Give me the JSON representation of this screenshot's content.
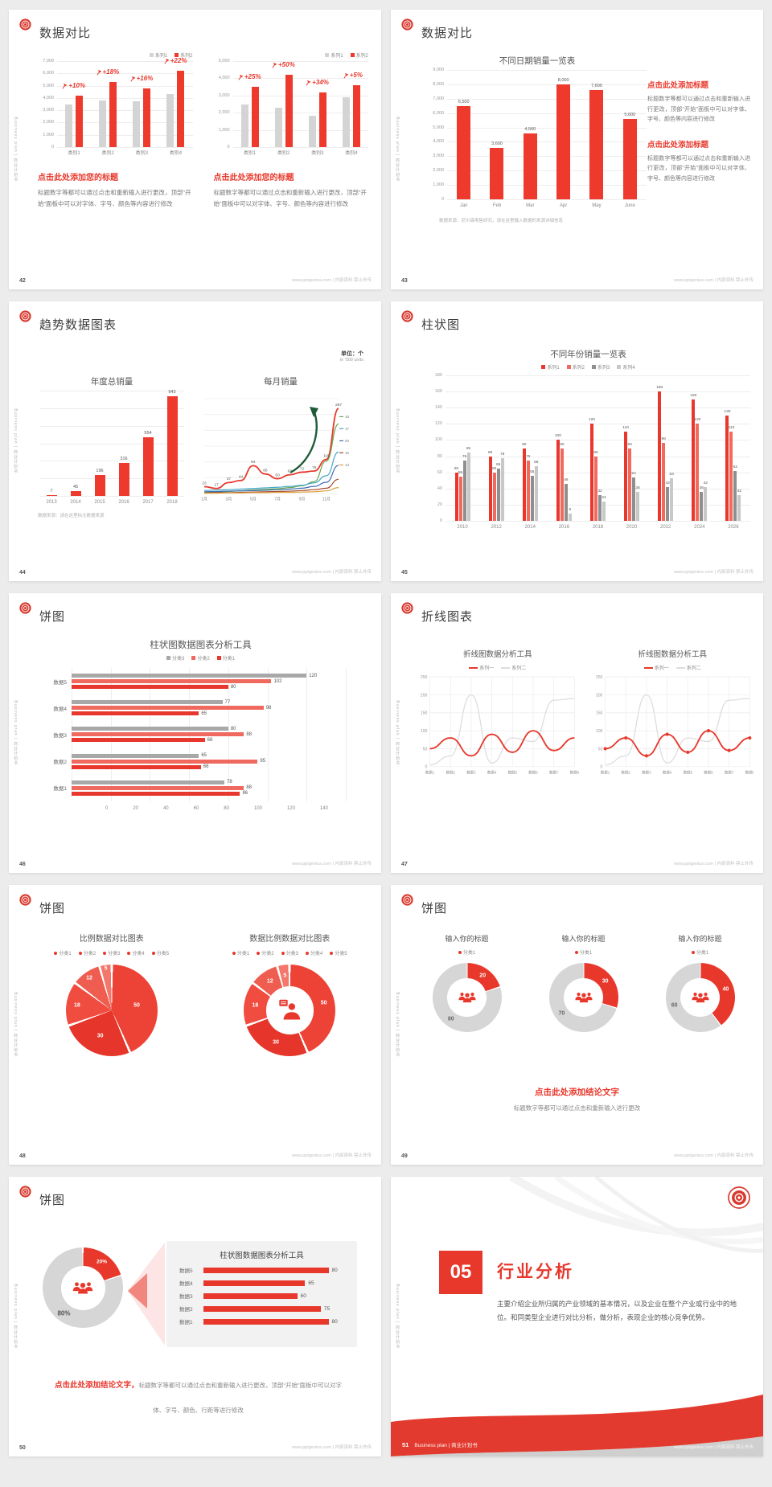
{
  "meta": {
    "footer": "www.pptgenius.com | 内部资料 禁止外传",
    "side_text": "Business plan | 商业计划书",
    "accent_color": "#e8382c"
  },
  "slides": {
    "s42": {
      "page": "42",
      "title": "数据对比",
      "heading": "点击此处添加您的标题",
      "body": "标题数字等都可以通过点击和重新输入进行更改，顶部“开始”面板中可以对字体、字号、颜色等内容进行修改",
      "chart_left": {
        "type": "bar",
        "legend": [
          {
            "label": "系列1",
            "color": "#d4d4d4"
          },
          {
            "label": "系列2",
            "color": "#ee3a2d"
          }
        ],
        "yticks": [
          "7,000",
          "6,000",
          "5,000",
          "4,000",
          "3,000",
          "2,000",
          "1,000",
          "0"
        ],
        "ymax": 7000,
        "categories": [
          "类别1",
          "类别2",
          "类别3",
          "类别4"
        ],
        "series": [
          {
            "name": "系列1",
            "color": "#d4d4d4",
            "values": [
              3500,
              3800,
              3700,
              4300
            ]
          },
          {
            "name": "系列2",
            "color": "#ee3a2d",
            "values": [
              4200,
              5300,
              4800,
              6200
            ]
          }
        ],
        "badges": [
          "+10%",
          "+18%",
          "+16%",
          "+22%"
        ]
      },
      "chart_right": {
        "type": "bar",
        "legend": [
          {
            "label": "系列1",
            "color": "#d4d4d4"
          },
          {
            "label": "系列2",
            "color": "#ee3a2d"
          }
        ],
        "yticks": [
          "5,000",
          "4,000",
          "3,000",
          "2,000",
          "1,000",
          "0"
        ],
        "ymax": 5000,
        "categories": [
          "类别1",
          "类别2",
          "类别3",
          "类别4"
        ],
        "series": [
          {
            "name": "系列1",
            "color": "#d4d4d4",
            "values": [
              2500,
              2300,
              1800,
              2900
            ]
          },
          {
            "name": "系列2",
            "color": "#ee3a2d",
            "values": [
              3500,
              4200,
              3200,
              3600
            ]
          }
        ],
        "badges": [
          "+25%",
          "+50%",
          "+34%",
          "+5%"
        ]
      }
    },
    "s43": {
      "page": "43",
      "title": "数据对比",
      "chart": {
        "type": "bar",
        "title": "不同日期销量一览表",
        "yticks": [
          "9,000",
          "8,000",
          "7,000",
          "6,000",
          "5,000",
          "4,000",
          "3,000",
          "2,000",
          "1,000",
          "0"
        ],
        "ymax": 9000,
        "categories": [
          "Jan",
          "Feb",
          "Mar",
          "Apr",
          "May",
          "June"
        ],
        "series": [
          {
            "name": "销量",
            "color": "#ee3a2d",
            "values": [
              6500,
              3600,
              4560,
              8000,
              7600,
              5600
            ]
          }
        ]
      },
      "note": "数据来源：尼尔森零售研究，请在这里输入数据的来源详细信息",
      "heading": "点击此处添加标题",
      "body": "标题数字等都可以通过点击和重新输入进行更改，顶部“开始”面板中可以对字体、字号、颜色等内容进行修改"
    },
    "s44": {
      "page": "44",
      "title": "趋势数据图表",
      "unit1": "单位：个",
      "unit2": "in '000 units",
      "note": "数据来源：请在这里标注数据来源",
      "chart_left": {
        "type": "bar",
        "title": "年度总销量",
        "ymax": 1000,
        "categories": [
          "2013",
          "2014",
          "2015",
          "2016",
          "2017",
          "2018"
        ],
        "series": [
          {
            "name": "年度总销量",
            "color": "#ee3a2d",
            "values": [
              7,
              45,
              196,
              316,
              554,
              943
            ]
          }
        ]
      },
      "chart_right": {
        "type": "line",
        "title": "每月销量",
        "ymax": 320,
        "categories": [
          "1月",
          "2月",
          "3月",
          "4月",
          "5月",
          "6月",
          "7月",
          "8月",
          "9月",
          "10月",
          "11月",
          "12月"
        ],
        "xticks_shown": [
          "1月",
          "3月",
          "5月",
          "7月",
          "9月",
          "11月"
        ],
        "series": [
          {
            "name": "主线",
            "color": "#e8382c",
            "values": [
              23,
              17,
              37,
              44,
              94,
              66,
              50,
              63,
              72,
              76,
              115,
              287
            ]
          },
          {
            "name": "线2",
            "color": "#6aa84f",
            "values": [
              3,
              5,
              7,
              9,
              12,
              14,
              16,
              20,
              26,
              40,
              110,
              235
            ]
          },
          {
            "name": "线3",
            "color": "#45a6c9",
            "values": [
              10,
              12,
              13,
              15,
              17,
              19,
              21,
              24,
              28,
              36,
              60,
              140
            ]
          },
          {
            "name": "线4",
            "color": "#3c6db0",
            "values": [
              6,
              7,
              8,
              9,
              10,
              11,
              13,
              15,
              18,
              24,
              38,
              95
            ]
          },
          {
            "name": "线5",
            "color": "#a5492d",
            "values": [
              2,
              3,
              3,
              4,
              5,
              6,
              7,
              8,
              10,
              13,
              18,
              48
            ]
          },
          {
            "name": "线6",
            "color": "#e0a03c",
            "values": [
              1,
              1,
              2,
              2,
              3,
              3,
              4,
              4,
              5,
              6,
              9,
              20
            ]
          }
        ],
        "end_labels": [
          {
            "t": "18",
            "c": "#6aa84f"
          },
          {
            "t": "17",
            "c": "#45a6c9"
          },
          {
            "t": "20",
            "c": "#3c6db0"
          },
          {
            "t": "15",
            "c": "#a5492d"
          },
          {
            "t": "13",
            "c": "#e0a03c"
          }
        ]
      }
    },
    "s45": {
      "page": "45",
      "title": "柱状图",
      "chart": {
        "type": "bar",
        "title": "不同年份销量一览表",
        "legend": [
          {
            "label": "系列1",
            "color": "#e8372c"
          },
          {
            "label": "系列2",
            "color": "#f2695d"
          },
          {
            "label": "系列3",
            "color": "#8f8f8f"
          },
          {
            "label": "系列4",
            "color": "#c8c8c8"
          }
        ],
        "yticks": [
          "180",
          "160",
          "140",
          "120",
          "100",
          "80",
          "60",
          "40",
          "20",
          "0"
        ],
        "ymax": 180,
        "categories": [
          "2010",
          "2012",
          "2014",
          "2016",
          "2018",
          "2020",
          "2022",
          "2024",
          "2026"
        ],
        "series": [
          {
            "name": "系列1",
            "color": "#e8372c",
            "values": [
              60,
              80,
              90,
              100,
              120,
              110,
              160,
              150,
              130
            ]
          },
          {
            "name": "系列2",
            "color": "#f2695d",
            "values": [
              55,
              60,
              75,
              90,
              80,
              90,
              96,
              120,
              110
            ]
          },
          {
            "name": "系列3",
            "color": "#8f8f8f",
            "values": [
              75,
              65,
              56,
              46,
              32,
              54,
              42,
              36,
              62
            ]
          },
          {
            "name": "系列4",
            "color": "#c8c8c8",
            "values": [
              85,
              78,
              68,
              9,
              24,
              36,
              53,
              42,
              32
            ]
          }
        ]
      }
    },
    "s46": {
      "page": "46",
      "title": "饼图",
      "chart": {
        "type": "hbar",
        "title": "柱状图数据图表分析工具",
        "legend": [
          {
            "label": "分类3",
            "color": "#a8a8a8"
          },
          {
            "label": "分类2",
            "color": "#f0695e"
          },
          {
            "label": "分类1",
            "color": "#e8372c"
          }
        ],
        "xticks": [
          "0",
          "20",
          "40",
          "60",
          "80",
          "100",
          "120",
          "140"
        ],
        "xmax": 140,
        "colors": [
          "#a8a8a8",
          "#f0695e",
          "#e8372c"
        ],
        "rows": [
          {
            "label": "数据5",
            "values": [
              120,
              102,
              80
            ]
          },
          {
            "label": "数据4",
            "values": [
              77,
              98,
              65
            ]
          },
          {
            "label": "数据3",
            "values": [
              80,
              88,
              68
            ]
          },
          {
            "label": "数据2",
            "values": [
              65,
              95,
              66
            ]
          },
          {
            "label": "数据1",
            "values": [
              78,
              88,
              86
            ]
          }
        ]
      }
    },
    "s47": {
      "page": "47",
      "title": "折线图表",
      "chart_left": {
        "type": "line",
        "title": "折线图数据分析工具",
        "legend": [
          {
            "label": "系列一",
            "color": "#e8382c"
          },
          {
            "label": "系列二",
            "color": "#dcdcdc"
          }
        ],
        "yticks": [
          "250",
          "200",
          "150",
          "100",
          "50",
          "0"
        ],
        "ymax": 250,
        "categories": [
          "数据1",
          "数据2",
          "数据3",
          "数据4",
          "数据5",
          "数据6",
          "数据7",
          "数据8"
        ],
        "series": [
          {
            "name": "系列二",
            "color": "#dcdcdc",
            "values": [
              5,
              30,
              200,
              10,
              80,
              70,
              185,
              190
            ]
          },
          {
            "name": "系列一",
            "color": "#e8382c",
            "values": [
              50,
              80,
              30,
              90,
              40,
              100,
              45,
              80
            ]
          }
        ]
      },
      "chart_right": {
        "type": "line",
        "title": "折线图数据分析工具",
        "legend": [
          {
            "label": "系列一",
            "color": "#e8382c"
          },
          {
            "label": "系列二",
            "color": "#dcdcdc"
          }
        ],
        "yticks": [
          "250",
          "200",
          "150",
          "100",
          "50",
          "0"
        ],
        "ymax": 250,
        "categories": [
          "数据1",
          "数据2",
          "数据3",
          "数据4",
          "数据5",
          "数据6",
          "数据7",
          "数据8"
        ],
        "markers": true,
        "series": [
          {
            "name": "系列二",
            "color": "#dcdcdc",
            "values": [
              5,
              30,
              200,
              10,
              80,
              70,
              185,
              190
            ]
          },
          {
            "name": "系列一",
            "color": "#e8382c",
            "values": [
              50,
              80,
              30,
              90,
              40,
              100,
              45,
              80
            ]
          }
        ]
      }
    },
    "s48": {
      "page": "48",
      "title": "饼图",
      "chart_left": {
        "type": "pie",
        "title": "比例数据对比图表",
        "legend": [
          {
            "label": "分类1",
            "color": "#e8382c"
          },
          {
            "label": "分类2",
            "color": "#e8382c"
          },
          {
            "label": "分类3",
            "color": "#e8382c"
          },
          {
            "label": "分类4",
            "color": "#e8382c"
          },
          {
            "label": "分类5",
            "color": "#e8382c"
          }
        ],
        "values": [
          50,
          30,
          18,
          12,
          5
        ],
        "colors": [
          "#ed4236",
          "#e6352a",
          "#f04c40",
          "#ef5d50",
          "#f3776b"
        ]
      },
      "chart_right": {
        "type": "donut",
        "title": "数据比例数据对比图表",
        "legend": [
          {
            "label": "分类1",
            "color": "#e8382c"
          },
          {
            "label": "分类2",
            "color": "#e8382c"
          },
          {
            "label": "分类3",
            "color": "#e8382c"
          },
          {
            "label": "分类4",
            "color": "#e8382c"
          },
          {
            "label": "分类5",
            "color": "#e8382c"
          }
        ],
        "values": [
          50,
          30,
          18,
          12,
          5
        ],
        "colors": [
          "#ed4236",
          "#e6352a",
          "#f04c40",
          "#ef5d50",
          "#f3776b"
        ]
      }
    },
    "s49": {
      "page": "49",
      "title": "饼图",
      "block_title": "输入你的标题",
      "legend_label": "分类1",
      "donuts": [
        {
          "red": 20,
          "gray": 80
        },
        {
          "red": 30,
          "gray": 70
        },
        {
          "red": 40,
          "gray": 60
        }
      ],
      "heading": "点击此处添加结论文字",
      "body": "标题数字等都可以通过点击和重新输入进行更改"
    },
    "s50": {
      "page": "50",
      "title": "饼图",
      "donut": {
        "gray": 80,
        "red": 20,
        "gray_label": "80%",
        "red_label": "20%"
      },
      "panel": {
        "title": "柱状图数据图表分析工具",
        "xmax": 90,
        "rows": [
          {
            "label": "数据5",
            "value": 80
          },
          {
            "label": "数据4",
            "value": 65
          },
          {
            "label": "数据3",
            "value": 60
          },
          {
            "label": "数据2",
            "value": 75
          },
          {
            "label": "数据1",
            "value": 80
          }
        ]
      },
      "conclusion_red": "点击此处添加结论文字，",
      "conclusion_gray": "标题数字等都可以通过点击和重新输入进行更改，顶部“开始”面板中可以对字体、字号、颜色、行距等进行修改"
    },
    "s51": {
      "page": "51",
      "number": "05",
      "title": "行业分析",
      "body": "主要介绍企业所归属的产业领域的基本情况，以及企业在整个产业或行业中的地位。和同类型企业进行对比分析，做分析，表现企业的核心竞争优势。",
      "band_text": "Business plan | 商业计划书"
    }
  }
}
